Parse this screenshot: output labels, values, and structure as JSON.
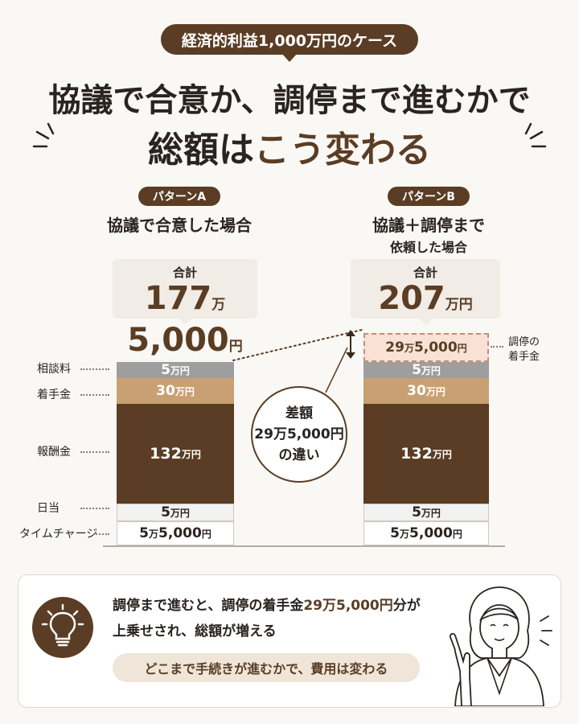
{
  "header": {
    "case_label": "経済的利益1,000万円のケース",
    "title_line1": "協議で合意か、調停まで進むかで",
    "title_line2_pre": "総額は",
    "title_line2_accent": "こう変わる"
  },
  "pattern_a": {
    "tag": "パターンA",
    "subtitle": "協議で合意した場合",
    "total_label": "合計",
    "total_man": "177",
    "total_rest": "5,000",
    "unit_man": "万",
    "unit_yen": "円"
  },
  "pattern_b": {
    "tag": "パターンB",
    "subtitle_line1": "協議＋調停まで",
    "subtitle_line2": "依頼した場合",
    "total_label": "合計",
    "total_man": "207",
    "unit_man_yen": "万円"
  },
  "difference": {
    "line1": "差額",
    "line2": "29万5,000円",
    "line3": "の違い"
  },
  "mediation_label": {
    "line1": "調停の",
    "line2": "着手金"
  },
  "row_labels": {
    "consultation": "相談料",
    "retainer": "着手金",
    "reward": "報酬金",
    "daily": "日当",
    "time_charge": "タイムチャージ"
  },
  "chart_data": {
    "type": "bar",
    "stacked": true,
    "unit": "円",
    "categories": [
      "パターンA",
      "パターンB"
    ],
    "series": [
      {
        "name": "タイムチャージ",
        "values": [
          55000,
          55000
        ],
        "num": "5",
        "sub": "5,000",
        "color": "#ffffff"
      },
      {
        "name": "日当",
        "values": [
          50000,
          50000
        ],
        "num": "5",
        "sub": "",
        "color": "#f2f2f2"
      },
      {
        "name": "報酬金",
        "values": [
          1320000,
          1320000
        ],
        "num": "132",
        "sub": "",
        "color": "#5a3d24"
      },
      {
        "name": "着手金",
        "values": [
          300000,
          300000
        ],
        "num": "30",
        "sub": "",
        "color": "#c9a072"
      },
      {
        "name": "相談料",
        "values": [
          50000,
          50000
        ],
        "num": "5",
        "sub": "",
        "color": "#9e9e9e"
      },
      {
        "name": "調停の着手金",
        "values": [
          0,
          295000
        ],
        "num": "29",
        "sub": "5,000",
        "color": "#f9e1d5"
      }
    ],
    "totals": [
      1775000,
      2070000
    ]
  },
  "message": {
    "line1_pre": "調停まで進むと、調停の着手金",
    "line1_hl": "29万5,000円",
    "line1_post": "分が",
    "line2": "上乗せされ、総額が増える",
    "conclusion": "どこまで手続きが進むかで、費用は変わる"
  }
}
